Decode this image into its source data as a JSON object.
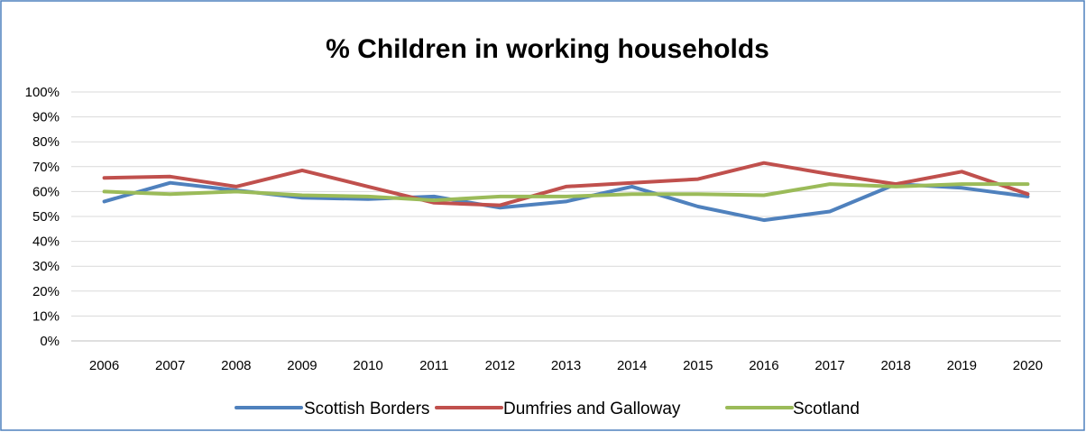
{
  "chart_data": {
    "type": "line",
    "title": "% Children in working households",
    "categories": [
      "2006",
      "2007",
      "2008",
      "2009",
      "2010",
      "2011",
      "2012",
      "2013",
      "2014",
      "2015",
      "2016",
      "2017",
      "2018",
      "2019",
      "2020"
    ],
    "ylim": [
      0,
      1
    ],
    "yticks": [
      "0%",
      "10%",
      "20%",
      "30%",
      "40%",
      "50%",
      "60%",
      "70%",
      "80%",
      "90%",
      "100%"
    ],
    "grid": true,
    "legend_position": "bottom",
    "series": [
      {
        "name": "Scottish Borders",
        "color": "#4F81BD",
        "values": [
          0.56,
          0.635,
          0.605,
          0.575,
          0.57,
          0.58,
          0.535,
          0.56,
          0.62,
          0.54,
          0.485,
          0.52,
          0.63,
          0.615,
          0.58
        ]
      },
      {
        "name": "Dumfries and Galloway",
        "color": "#C0504D",
        "values": [
          0.655,
          0.66,
          0.62,
          0.685,
          0.62,
          0.555,
          0.545,
          0.62,
          0.635,
          0.65,
          0.715,
          0.67,
          0.63,
          0.68,
          0.59
        ]
      },
      {
        "name": "Scotland",
        "color": "#9BBB59",
        "values": [
          0.6,
          0.59,
          0.6,
          0.585,
          0.58,
          0.565,
          0.58,
          0.58,
          0.59,
          0.59,
          0.585,
          0.63,
          0.62,
          0.63,
          0.63
        ]
      }
    ]
  }
}
